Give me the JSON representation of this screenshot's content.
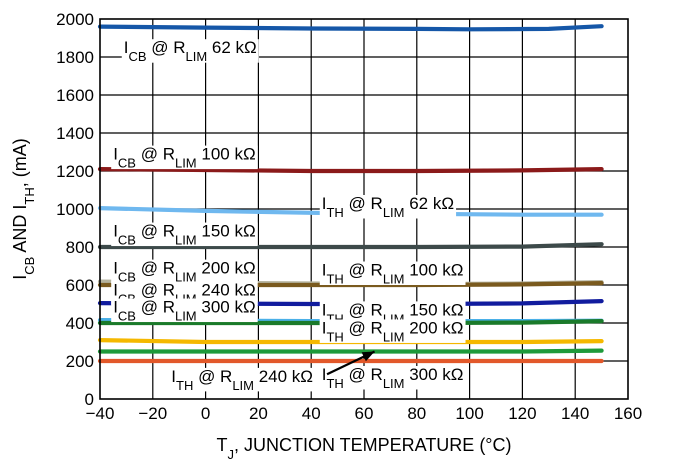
{
  "chart_data": {
    "type": "line",
    "title": "",
    "xlabel": "T<sub>J</sub>, JUNCTION TEMPERATURE (°C)",
    "ylabel": "I<sub>CB</sub> AND I<sub>TH</sub>, (mA)",
    "xlim": [
      -40,
      160
    ],
    "ylim": [
      0,
      2000
    ],
    "xticks": [
      -40,
      -20,
      0,
      20,
      40,
      60,
      80,
      100,
      120,
      140,
      160
    ],
    "yticks": [
      0,
      200,
      400,
      600,
      800,
      1000,
      1200,
      1400,
      1600,
      1800,
      2000
    ],
    "xtick_labels": [
      "−40",
      "−20",
      "0",
      "20",
      "40",
      "60",
      "80",
      "100",
      "120",
      "140",
      "160"
    ],
    "ytick_labels": [
      "0",
      "200",
      "400",
      "600",
      "800",
      "1000",
      "1200",
      "1400",
      "1600",
      "1800",
      "2000"
    ],
    "grid": true,
    "series": [
      {
        "name": "I<sub>CB</sub> @ R<sub>LIM</sub> 62 kΩ",
        "color": "#1557a8",
        "x": [
          -40,
          0,
          40,
          80,
          100,
          130,
          150
        ],
        "y": [
          1960,
          1955,
          1950,
          1948,
          1946,
          1948,
          1962
        ]
      },
      {
        "name": "I<sub>CB</sub> @ R<sub>LIM</sub> 100 kΩ",
        "color": "#8b1a1a",
        "x": [
          -40,
          0,
          40,
          80,
          120,
          150
        ],
        "y": [
          1210,
          1205,
          1200,
          1200,
          1203,
          1210
        ]
      },
      {
        "name": "I<sub>TH</sub> @ R<sub>LIM</sub> 62 kΩ",
        "color": "#6fb8ef",
        "x": [
          -40,
          0,
          40,
          80,
          120,
          150
        ],
        "y": [
          1005,
          990,
          980,
          975,
          970,
          970
        ]
      },
      {
        "name": "I<sub>CB</sub> @ R<sub>LIM</sub> 150 kΩ",
        "color": "#3d4a4a",
        "x": [
          -40,
          0,
          40,
          80,
          120,
          150
        ],
        "y": [
          800,
          800,
          800,
          800,
          802,
          815
        ]
      },
      {
        "name": "I<sub>CB</sub> @ R<sub>LIM</sub> 200 kΩ",
        "color": "#b5b39e",
        "x": [
          -40,
          0,
          40,
          80,
          120,
          150
        ],
        "y": [
          618,
          612,
          608,
          605,
          608,
          615
        ]
      },
      {
        "name": "I<sub>TH</sub> @ R<sub>LIM</sub> 100 kΩ",
        "color": "#7a5a1e",
        "x": [
          -40,
          0,
          40,
          80,
          120,
          150
        ],
        "y": [
          600,
          600,
          600,
          600,
          603,
          610
        ]
      },
      {
        "name": "I<sub>CB</sub> @ R<sub>LIM</sub> 240 kΩ",
        "color": "#111c9e",
        "x": [
          -40,
          0,
          40,
          80,
          120,
          150
        ],
        "y": [
          505,
          502,
          500,
          500,
          503,
          515
        ]
      },
      {
        "name": "I<sub>CB</sub> @ R<sub>LIM</sub> 300 kΩ",
        "color": "#4ab0e8",
        "x": [
          -40,
          0,
          40,
          80,
          120,
          150
        ],
        "y": [
          415,
          412,
          410,
          410,
          410,
          412
        ]
      },
      {
        "name": "I<sub>TH</sub> @ R<sub>LIM</sub> 150 kΩ",
        "color": "#1a7a2a",
        "x": [
          -40,
          0,
          40,
          80,
          120,
          150
        ],
        "y": [
          400,
          400,
          400,
          400,
          402,
          410
        ]
      },
      {
        "name": "I<sub>TH</sub> @ R<sub>LIM</sub> 200 kΩ",
        "color": "#f5b800",
        "x": [
          -40,
          0,
          40,
          80,
          120,
          150
        ],
        "y": [
          310,
          300,
          300,
          300,
          300,
          305
        ]
      },
      {
        "name": "I<sub>TH</sub> @ R<sub>LIM</sub> 240 kΩ",
        "color": "#1e9a3a",
        "x": [
          -40,
          0,
          40,
          80,
          120,
          150
        ],
        "y": [
          250,
          250,
          250,
          250,
          250,
          255
        ]
      },
      {
        "name": "I<sub>TH</sub> @ R<sub>LIM</sub> 300 kΩ",
        "color": "#e2582a",
        "x": [
          -40,
          0,
          40,
          80,
          120,
          150
        ],
        "y": [
          200,
          200,
          200,
          200,
          200,
          200
        ]
      }
    ]
  }
}
